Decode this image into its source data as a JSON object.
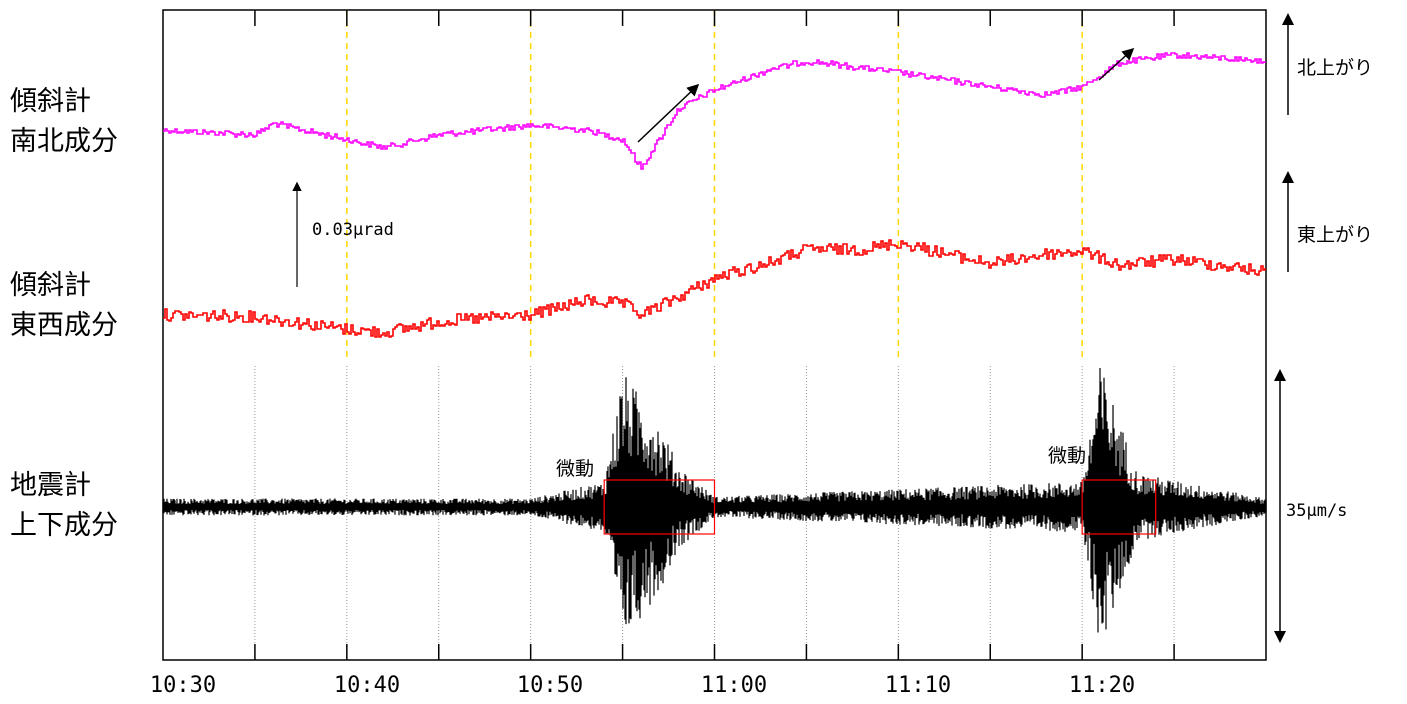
{
  "labels": {
    "tilt_ns_line1": "傾斜計",
    "tilt_ns_line2": "南北成分",
    "tilt_ew_line1": "傾斜計",
    "tilt_ew_line2": "東西成分",
    "seis_line1": "地震計",
    "seis_line2": "上下成分",
    "north_up": "北上がり",
    "east_up": "東上がり",
    "tilt_scale": "0.03μrad",
    "seis_scale": "35μm/s",
    "tremor_1": "微動",
    "tremor_2": "微動"
  },
  "chart_data": {
    "type": "line",
    "x_ticks": [
      "10:30",
      "10:40",
      "10:50",
      "11:00",
      "11:10",
      "11:20"
    ],
    "x_range": [
      "10:30",
      "11:30"
    ],
    "series": [
      {
        "name": "傾斜計 南北成分",
        "color": "#ff00ff",
        "unit": "μrad",
        "x": [
          "10:30",
          "10:35",
          "10:36",
          "10:40",
          "10:42",
          "10:45",
          "10:50",
          "10:53",
          "10:55",
          "10:56",
          "10:58",
          "11:00",
          "11:03",
          "11:05",
          "11:10",
          "11:15",
          "11:18",
          "11:20",
          "11:22",
          "11:25",
          "11:30"
        ],
        "values": [
          0.0,
          -0.003,
          0.004,
          -0.006,
          -0.011,
          -0.003,
          0.003,
          0.0,
          -0.006,
          -0.024,
          0.013,
          0.025,
          0.038,
          0.043,
          0.036,
          0.027,
          0.022,
          0.027,
          0.042,
          0.047,
          0.043
        ]
      },
      {
        "name": "傾斜計 東西成分",
        "color": "#ff0000",
        "unit": "μrad",
        "x": [
          "10:30",
          "10:35",
          "10:40",
          "10:42",
          "10:45",
          "10:50",
          "10:53",
          "10:55",
          "10:56",
          "10:58",
          "11:00",
          "11:03",
          "11:05",
          "11:08",
          "11:10",
          "11:15",
          "11:18",
          "11:20",
          "11:22",
          "11:25",
          "11:30"
        ],
        "values": [
          0.0,
          -0.001,
          -0.009,
          -0.011,
          -0.004,
          0.0,
          0.009,
          0.007,
          0.0,
          0.011,
          0.023,
          0.033,
          0.041,
          0.041,
          0.045,
          0.032,
          0.038,
          0.04,
          0.031,
          0.035,
          0.027
        ]
      },
      {
        "name": "地震計 上下成分",
        "color": "#000000",
        "unit": "μm/s",
        "x": [
          "10:30",
          "10:50",
          "10:54",
          "10:55",
          "10:57",
          "10:58",
          "11:00",
          "11:20",
          "11:21",
          "11:23",
          "11:30"
        ],
        "amplitude": [
          1.0,
          1.0,
          3.0,
          16.0,
          10.0,
          5.0,
          1.2,
          3.0,
          17.0,
          4.0,
          1.0
        ]
      }
    ],
    "tremor_boxes": [
      {
        "label": "微動",
        "x_start": "10:54",
        "x_end": "11:00"
      },
      {
        "label": "微動",
        "x_start": "11:20",
        "x_end": "11:24"
      }
    ],
    "change_arrows": [
      {
        "series": "傾斜計 南北成分",
        "x": "10:58"
      },
      {
        "series": "傾斜計 南北成分",
        "x": "11:21"
      }
    ],
    "grid": true
  }
}
